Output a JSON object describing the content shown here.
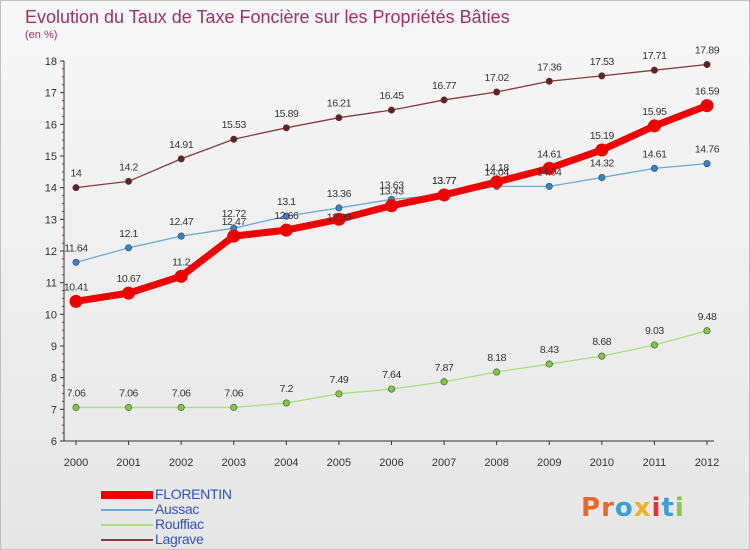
{
  "title": "Evolution du Taux de Taxe Foncière sur les Propriétés Bâties",
  "unit": "(en %)",
  "logo": {
    "text": "Proxiti",
    "colors": [
      "#e8692a",
      "#e8692a",
      "#3aa0d8",
      "#f0b020",
      "#e83030",
      "#3aa0d8",
      "#8cc63e"
    ]
  },
  "chart_data": {
    "type": "line",
    "x": [
      "2000",
      "2001",
      "2002",
      "2003",
      "2004",
      "2005",
      "2006",
      "2007",
      "2008",
      "2009",
      "2010",
      "2011",
      "2012"
    ],
    "ylim": [
      6,
      18
    ],
    "yticks": [
      "6",
      "7",
      "8",
      "9",
      "10",
      "11",
      "12",
      "13",
      "14",
      "15",
      "16",
      "17",
      "18"
    ],
    "grid": false,
    "legend_position": "bottom-left",
    "series": [
      {
        "name": "FLORENTIN",
        "color": "#ee0000",
        "marker_fill": "#ee0000",
        "values": [
          10.41,
          10.67,
          11.2,
          12.47,
          12.66,
          13.0,
          13.43,
          13.77,
          14.18,
          14.61,
          15.19,
          15.95,
          16.59
        ],
        "labels": [
          "10.41",
          "10.67",
          "11.2",
          "12.47",
          "12.66",
          "",
          "13.43",
          "13.77",
          "14.18",
          "14.61",
          "15.19",
          "15.95",
          "16.59"
        ]
      },
      {
        "name": "Aussac",
        "color": "#6aa8d8",
        "marker_fill": "#2f86d0",
        "values": [
          11.64,
          12.1,
          12.47,
          12.72,
          13.1,
          13.36,
          13.63,
          13.77,
          14.04,
          14.04,
          14.32,
          14.61,
          14.76
        ],
        "labels": [
          "11.64",
          "12.1",
          "12.47",
          "12.72",
          "13.1",
          "13.36",
          "13.63",
          "13.77",
          "14.04",
          "14.04",
          "14.32",
          "14.61",
          "14.76"
        ]
      },
      {
        "name": "Rouffiac",
        "color": "#a8e07a",
        "marker_fill": "#7ccc3c",
        "values": [
          7.06,
          7.06,
          7.06,
          7.06,
          7.2,
          7.49,
          7.64,
          7.87,
          8.18,
          8.43,
          8.68,
          9.03,
          9.48
        ],
        "labels": [
          "7.06",
          "7.06",
          "7.06",
          "7.06",
          "7.2",
          "7.49",
          "7.64",
          "7.87",
          "8.18",
          "8.43",
          "8.68",
          "9.03",
          "9.48"
        ]
      },
      {
        "name": "Lagrave",
        "color": "#8a3a3a",
        "marker_fill": "#6a1e1e",
        "values": [
          14.0,
          14.2,
          14.91,
          15.53,
          15.89,
          16.21,
          16.45,
          16.77,
          17.02,
          17.36,
          17.53,
          17.71,
          17.89
        ],
        "labels": [
          "14",
          "14.2",
          "14.91",
          "15.53",
          "15.89",
          "16.21",
          "16.45",
          "16.77",
          "17.02",
          "17.36",
          "17.53",
          "17.71",
          "17.89"
        ]
      }
    ],
    "extra_labels": [
      "12.98"
    ]
  }
}
